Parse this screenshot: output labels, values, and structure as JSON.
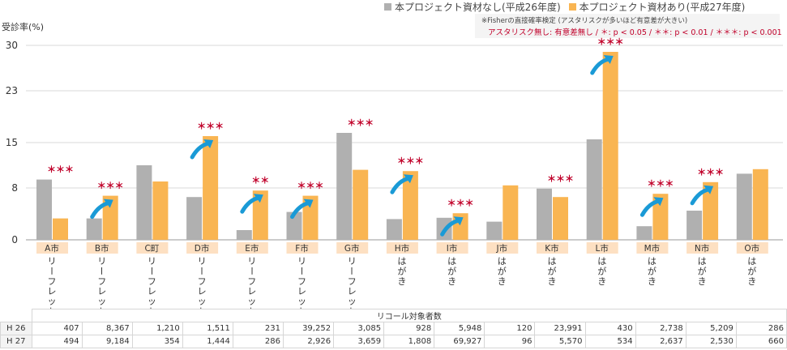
{
  "legend": {
    "items": [
      {
        "label": "本プロジェクト資材なし(平成26年度)",
        "color": "#b0b0b0"
      },
      {
        "label": "本プロジェクト資材あり(平成27年度)",
        "color": "#f9b552"
      }
    ]
  },
  "note": {
    "line1": "※Fisherの直接確率検定 (アスタリスクが多いほど有意差が大きい)",
    "line2": "アスタリスク無し: 有意差無し / ＊: p < 0.05 / ＊＊: p < 0.01 / ＊＊＊: p < 0.001"
  },
  "colors": {
    "h26": "#b0b0b0",
    "h27": "#f9b552",
    "star": "#c0002a",
    "arrow": "#1a9ad6",
    "label_bg": "#fde0c2"
  },
  "table": {
    "header": "リコール対象者数",
    "rows": [
      {
        "label": "H 26",
        "values": [
          "407",
          "8,367",
          "1,210",
          "1,511",
          "231",
          "39,252",
          "3,085",
          "928",
          "5,948",
          "120",
          "23,991",
          "430",
          "2,738",
          "5,209",
          "286"
        ]
      },
      {
        "label": "H 27",
        "values": [
          "494",
          "9,184",
          "354",
          "1,444",
          "286",
          "2,926",
          "3,659",
          "1,808",
          "69,927",
          "96",
          "5,570",
          "534",
          "2,637",
          "2,530",
          "660"
        ]
      }
    ]
  },
  "chart_data": {
    "type": "bar",
    "ylabel": "受診率(%)",
    "ylim": [
      0,
      30
    ],
    "yticks": [
      0,
      8,
      15,
      23,
      30
    ],
    "grid": true,
    "categories": [
      "A市",
      "B市",
      "C町",
      "D市",
      "E市",
      "F市",
      "G市",
      "H市",
      "I市",
      "J市",
      "K市",
      "L市",
      "M市",
      "N市",
      "O市"
    ],
    "materials": [
      "リーフレット",
      "リーフレット",
      "リーフレット",
      "リーフレット",
      "リーフレット",
      "リーフレット",
      "リーフレット",
      "はがき",
      "はがき",
      "はがき",
      "はがき",
      "はがき",
      "はがき",
      "はがき",
      "はがき"
    ],
    "series": [
      {
        "name": "本プロジェクト資材なし(平成26年度)",
        "values": [
          9.3,
          3.3,
          11.5,
          6.6,
          1.5,
          4.3,
          16.5,
          3.2,
          3.4,
          2.8,
          7.9,
          15.5,
          2.1,
          4.5,
          10.2
        ]
      },
      {
        "name": "本プロジェクト資材あり(平成27年度)",
        "values": [
          3.3,
          6.8,
          9.0,
          16.0,
          7.6,
          6.8,
          10.8,
          10.6,
          4.1,
          8.4,
          6.6,
          29.0,
          7.1,
          8.9,
          10.9
        ]
      }
    ],
    "significance": [
      "＊＊＊",
      "＊＊＊",
      "",
      "＊＊＊",
      "＊＊",
      "＊＊＊",
      "＊＊＊",
      "＊＊＊",
      "＊＊＊",
      "",
      "＊＊＊",
      "＊＊＊",
      "＊＊＊",
      "＊＊＊",
      ""
    ],
    "improved": [
      false,
      true,
      false,
      true,
      true,
      true,
      false,
      true,
      true,
      false,
      false,
      true,
      true,
      true,
      false
    ]
  }
}
